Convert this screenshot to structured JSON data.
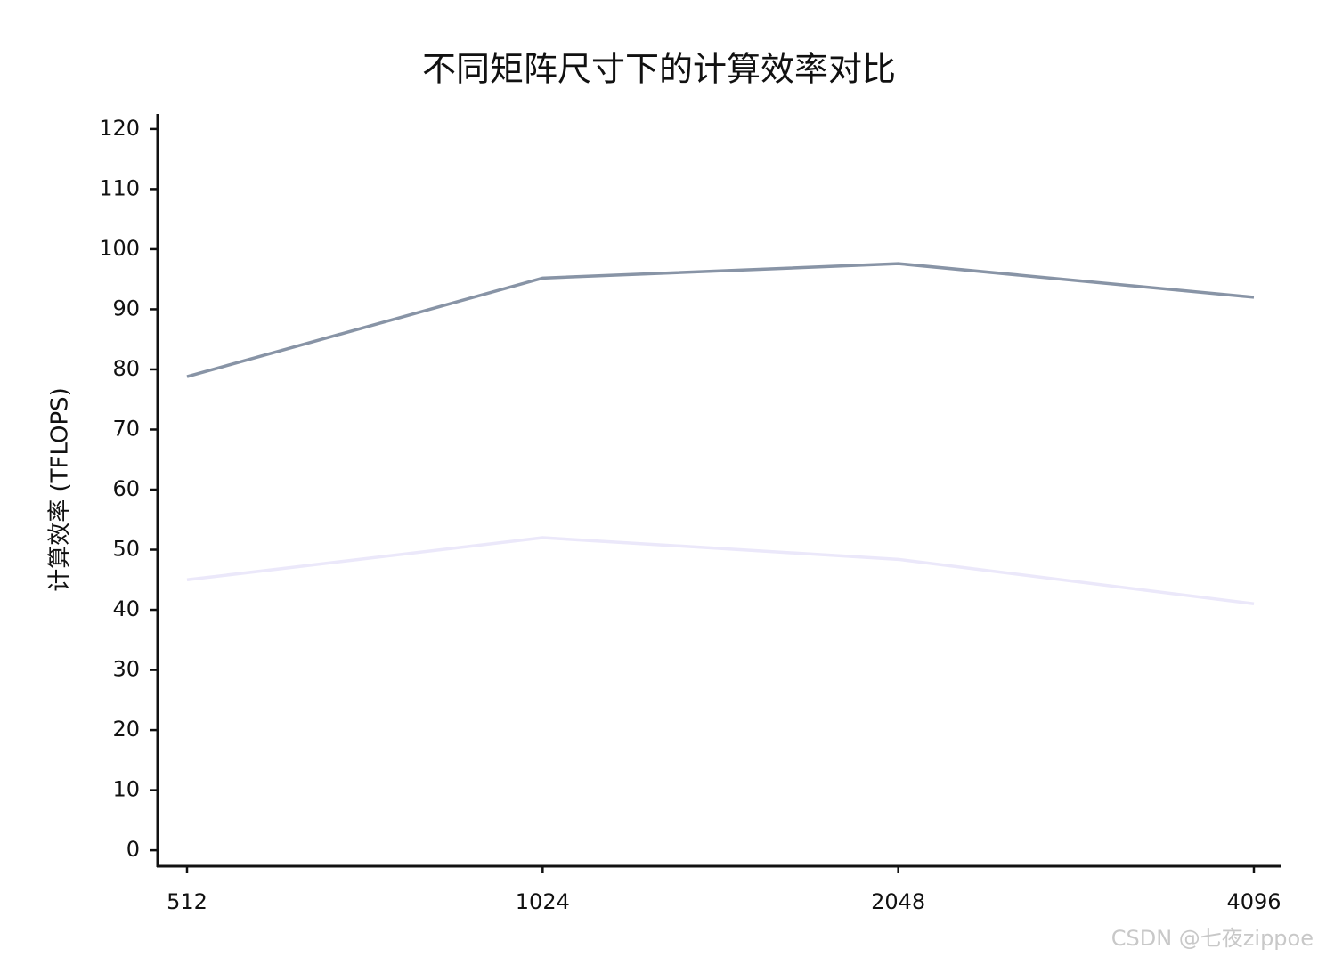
{
  "chart_data": {
    "type": "line",
    "title": "不同矩阵尺寸下的计算效率对比",
    "y_label": "计算效率 (TFLOPS)",
    "categories": [
      "512",
      "1024",
      "2048",
      "4096"
    ],
    "series": [
      {
        "color": "#8894a6",
        "values": [
          78.8,
          95.2,
          97.6,
          92.0
        ]
      },
      {
        "color": "#ebe8fa",
        "values": [
          45.0,
          52.0,
          48.4,
          41.0
        ]
      }
    ],
    "ylim": [
      -2.5,
      122.5
    ],
    "yticks": [
      0,
      10,
      20,
      30,
      40,
      50,
      60,
      70,
      80,
      90,
      100,
      110,
      120
    ]
  },
  "watermark": "CSDN @七夜zippoe"
}
